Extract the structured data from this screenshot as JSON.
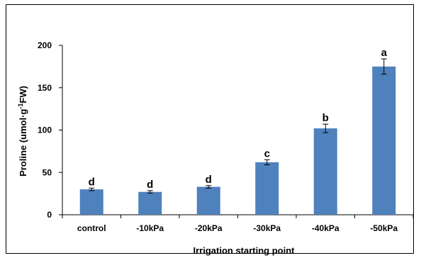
{
  "chart_data": {
    "type": "bar",
    "categories": [
      "control",
      "-10kPa",
      "-20kPa",
      "-30kPa",
      "-40kPa",
      "-50kPa"
    ],
    "values": [
      30,
      27,
      33,
      62,
      102,
      175
    ],
    "errors": [
      1.5,
      1.5,
      1.5,
      3,
      5,
      9
    ],
    "significance": [
      "d",
      "d",
      "d",
      "c",
      "b",
      "a"
    ],
    "xlabel": "Irrigation starting point",
    "ylabel_main": "Proline (umol·g",
    "ylabel_sup": "-1",
    "ylabel_end": "FW)",
    "ylim": [
      0,
      200
    ],
    "yticks": [
      0,
      50,
      100,
      150,
      200
    ],
    "bar_color": "#4f81bd",
    "grid": false,
    "legend": "none"
  }
}
